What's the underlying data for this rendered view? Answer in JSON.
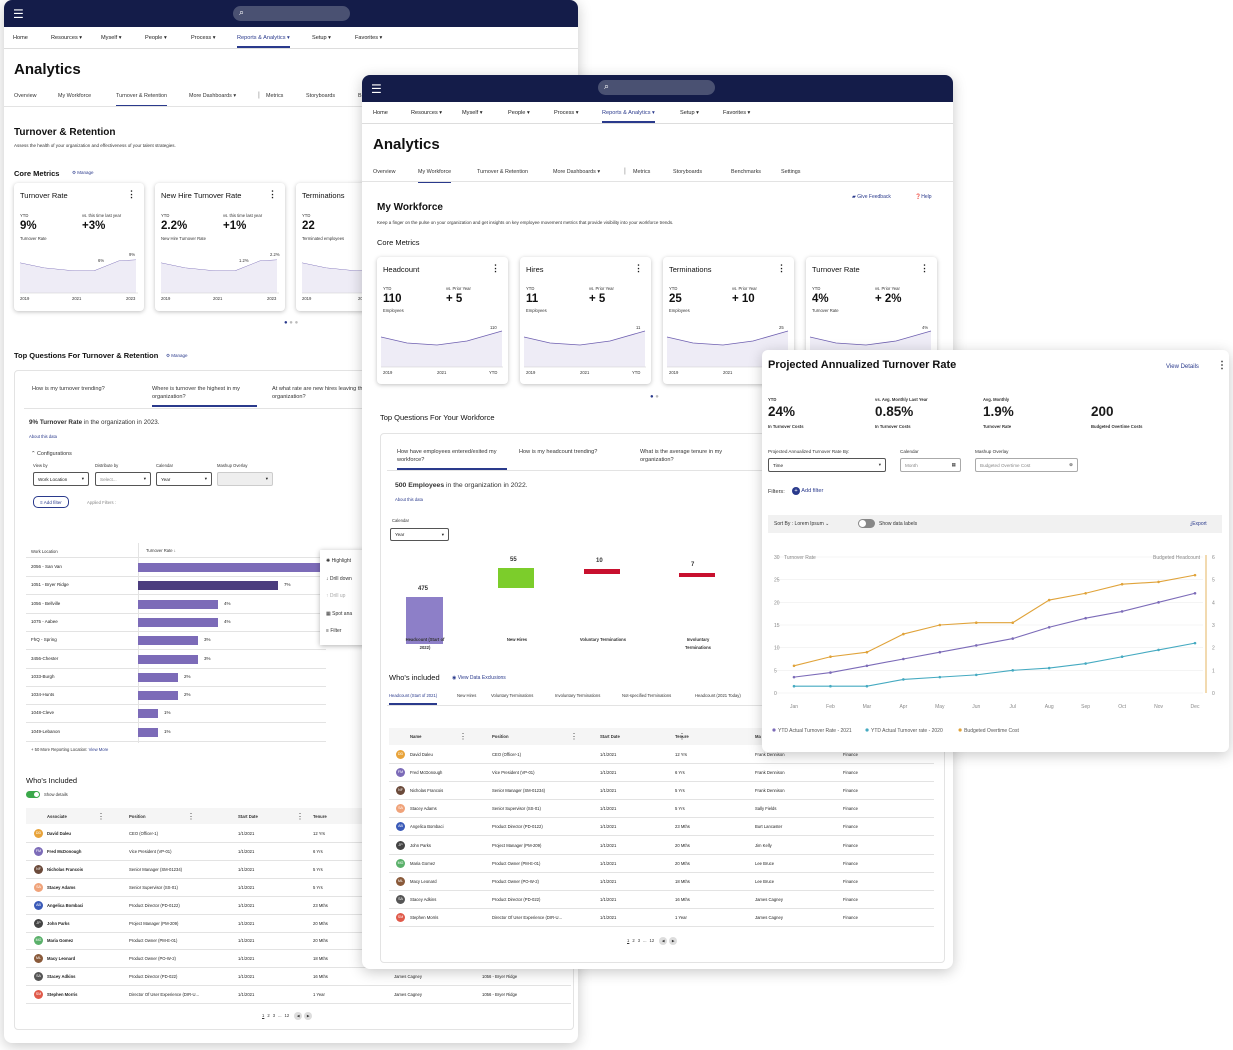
{
  "colors": {
    "navy": "#141c49",
    "accent": "#2a3a8c",
    "purple": "#7c6bb8",
    "dark_purple": "#4b3d7e",
    "green": "#7ccd2b",
    "red": "#c8102e",
    "orange": "#e0a33a",
    "teal": "#45aac1"
  },
  "nav": {
    "menu_icon": "menu-icon",
    "search_icon": "search-icon",
    "items": [
      "Home",
      "Resources",
      "Myself",
      "People",
      "Process",
      "Reports & Analytics",
      "Setup",
      "Favorites"
    ],
    "active": "Reports & Analytics"
  },
  "back": {
    "title": "Analytics",
    "tabs": [
      "Overview",
      "My Workforce",
      "Turnover & Retention",
      "More Dashboards",
      "Metrics",
      "Storyboards",
      "B"
    ],
    "section_title": "Turnover & Retention",
    "section_desc": "Assess the health of your organization and effectiveness of your talent strategies.",
    "core_metrics": "Core Metrics",
    "manage": "Manage",
    "cards": [
      {
        "title": "Turnover Rate",
        "ytd_label": "YTD",
        "ytd": "9%",
        "sub": "Turnover Rate",
        "cmp_label": "vs. this time last year",
        "cmp": "+3%",
        "p1": "6%",
        "p2": "9%",
        "x": [
          "2019",
          "2021",
          "2023"
        ]
      },
      {
        "title": "New Hire Turnover Rate",
        "ytd_label": "YTD",
        "ytd": "2.2%",
        "sub": "New Hire Turnover Rate",
        "cmp_label": "vs. this time last year",
        "cmp": "+1%",
        "p1": "1.2%",
        "p2": "2.2%",
        "x": [
          "2019",
          "2021",
          "2023"
        ]
      },
      {
        "title": "Terminations",
        "ytd_label": "YTD",
        "ytd": "22",
        "sub": "Terminated employees",
        "x": [
          "2019",
          "20"
        ]
      }
    ],
    "top_q_title": "Top Questions For Turnover & Retention",
    "questions": [
      "How is my turnover trending?",
      "Where is turnover the highest in my organization?",
      "At what rate are new hires leaving the organization?"
    ],
    "answer_bold": "9% Turnover Rate",
    "answer_rest": " in the organization in 2023.",
    "about": "About this data",
    "configurations": "Configurations",
    "config_labels": [
      "View by",
      "Distribute by",
      "Calendar",
      "Mashup Overlay"
    ],
    "config_values": [
      "Work Location",
      "Select...",
      "Year",
      ""
    ],
    "add_filter": "Add filter",
    "applied_filters": "Applied Filters :",
    "table_headers": [
      "Work Location",
      "Turnover Rate"
    ],
    "locations": [
      {
        "name": "2056 - San Van",
        "value": null
      },
      {
        "name": "1051 - Bryer Ridge",
        "value": "7%"
      },
      {
        "name": "1056 - Bellville",
        "value": "4%"
      },
      {
        "name": "1075 - Aabee",
        "value": "4%"
      },
      {
        "name": "FhQ - Spring",
        "value": "3%"
      },
      {
        "name": "3456-Chester",
        "value": "3%"
      },
      {
        "name": "1033-Burgh",
        "value": "2%"
      },
      {
        "name": "1034-Hunts",
        "value": "2%"
      },
      {
        "name": "1048-Cleve",
        "value": "1%"
      },
      {
        "name": "1049-Lebanon",
        "value": "1%"
      }
    ],
    "bar_values": [
      9.5,
      7,
      4,
      4,
      3,
      3,
      2,
      2,
      1,
      1
    ],
    "more_locations": "+ 50 More Reporting Location:",
    "view_more": "View More",
    "context_menu": [
      "Highlight",
      "Drill down",
      "Drill up",
      "Spot ana",
      "Filter"
    ],
    "whos_included": "Who's Included",
    "show_details": "Show details",
    "people_headers": [
      "Associate",
      "Position",
      "Start Date",
      "Tenure"
    ],
    "people": [
      {
        "ini": "DD",
        "name": "David Daleu",
        "pos": "CEO (Officer-1)",
        "start": "1/1/2021",
        "tenure": "12 Yrs",
        "color": "#e8a33a"
      },
      {
        "ini": "FM",
        "name": "Fred McDonough",
        "pos": "Vice President (VP-01)",
        "start": "1/1/2021",
        "tenure": "6 Yrs",
        "color": "#7c6bb8"
      },
      {
        "ini": "NF",
        "name": "Nicholas Francois",
        "pos": "Senior Manager (SM-01234)",
        "start": "1/1/2021",
        "tenure": "5 Yrs",
        "color": "#6b4a3a"
      },
      {
        "ini": "SA",
        "name": "Stacey Adams",
        "pos": "Senior Supervisor (SS-01)",
        "start": "1/1/2021",
        "tenure": "5 Yrs",
        "color": "#f0a37a"
      },
      {
        "ini": "AB",
        "name": "Angelica Bombaci",
        "pos": "Product Director (PD-0122)",
        "start": "1/1/2021",
        "tenure": "23 Mths",
        "color": "#3a5ab8"
      },
      {
        "ini": "JP",
        "name": "John Parks",
        "pos": "Project Manager (PM-209)",
        "start": "1/1/2021",
        "tenure": "20 Mths",
        "color": "#444"
      },
      {
        "ini": "MG",
        "name": "Maria Gomez",
        "pos": "Product Owner (PM-E-01)",
        "start": "1/1/2021",
        "tenure": "20 Mths",
        "color": "#5ab06a"
      },
      {
        "ini": "ML",
        "name": "Macy Leonard",
        "pos": "Product Owner (PO-W-2)",
        "start": "1/1/2021",
        "tenure": "18 Mths",
        "color": "#8a5a3a"
      },
      {
        "ini": "SA",
        "name": "Stacey Adkins",
        "pos": "Product Director (PD-022)",
        "start": "1/1/2021",
        "tenure": "16 Mths",
        "color": "#555"
      },
      {
        "ini": "SM",
        "name": "Stephen Morris",
        "pos": "Director Of User Experience (DIR-U...",
        "start": "1/1/2021",
        "tenure": "1 Year",
        "color": "#e05a4a"
      }
    ],
    "extra_cols": [
      {
        "mgr": "James Cagney",
        "loc": "1056 - Bryer Ridge"
      },
      {
        "mgr": "James Cagney",
        "loc": "1056 - Bryer Ridge"
      }
    ],
    "pager": [
      "1",
      "2",
      "3",
      "...",
      "12"
    ]
  },
  "mid": {
    "title": "Analytics",
    "tabs": [
      "Overview",
      "My Workforce",
      "Turnover & Retention",
      "More Dashboards",
      "Metrics",
      "Storyboards",
      "Benchmarks",
      "Settings"
    ],
    "feedback": "Give Feedback",
    "help": "Help",
    "section_title": "My Workforce",
    "section_desc": "Keep a finger on the pulse on your organization and get insights on key employee movement metrics that provide visibility into your workforce trends.",
    "core_metrics": "Core Metrics",
    "cards": [
      {
        "title": "Headcount",
        "ytd_label": "YTD",
        "ytd": "110",
        "sub": "Employees",
        "cmp_label": "vs. Prior Year",
        "cmp": "+ 5",
        "end": "110",
        "x": [
          "2019",
          "2021",
          "YTD"
        ]
      },
      {
        "title": "Hires",
        "ytd_label": "YTD",
        "ytd": "11",
        "sub": "Employees",
        "cmp_label": "vs. Prior Year",
        "cmp": "+ 5",
        "end": "11",
        "x": [
          "2019",
          "2021",
          "YTD"
        ]
      },
      {
        "title": "Terminations",
        "ytd_label": "YTD",
        "ytd": "25",
        "sub": "Employees",
        "cmp_label": "vs. Prior Year",
        "cmp": "+ 10",
        "end": "25",
        "x": [
          "2019",
          "2021",
          "YTD"
        ]
      },
      {
        "title": "Turnover Rate",
        "ytd_label": "YTD",
        "ytd": "4%",
        "sub": "Turnover Rate",
        "cmp_label": "vs. Prior Year",
        "cmp": "+ 2%",
        "end": "4%",
        "x": [
          "2019"
        ]
      }
    ],
    "top_q_title": "Top Questions For Your Workforce",
    "questions": [
      "How have employees entered/exited my workforce?",
      "How is my headcount trending?",
      "What is the average tenure in my organization?"
    ],
    "answer_bold": "500 Employees",
    "answer_rest": " in the organization in 2022.",
    "about": "About this data",
    "calendar_label": "Calendar",
    "calendar_value": "Year",
    "waterfall": [
      {
        "label": "Headcount (Start of 2022)",
        "value": 475
      },
      {
        "label": "New Hires",
        "value": 55
      },
      {
        "label": "Voluntary Terminations",
        "value": 10
      },
      {
        "label": "Involuntary Terminations",
        "value": 7
      }
    ],
    "whos_included": "Who's included",
    "view_exclusions": "View Data Exclusions",
    "sub_tabs": [
      "Headcount (Start of 2021)",
      "New Hires",
      "Voluntary Terminations",
      "Involuntary Terminations",
      "Not-specified Terminations",
      "Headcount (2021 Today)"
    ],
    "people_headers": [
      "Name",
      "Position",
      "Start Date",
      "Tenure",
      "Ma"
    ],
    "people": [
      {
        "ini": "DD",
        "name": "David Daleu",
        "pos": "CEO (Officer-1)",
        "start": "1/1/2021",
        "tenure": "12 Yrs",
        "mgr": "Frank Dennison",
        "dept": "Finance",
        "color": "#e8a33a"
      },
      {
        "ini": "FM",
        "name": "Fred McDonough",
        "pos": "Vice President (VP-01)",
        "start": "1/1/2021",
        "tenure": "6 Yrs",
        "mgr": "Frank Dennison",
        "dept": "Finance",
        "color": "#7c6bb8"
      },
      {
        "ini": "NF",
        "name": "Nicholas Francois",
        "pos": "Senior Manager (SM-01234)",
        "start": "1/1/2021",
        "tenure": "5 Yrs",
        "mgr": "Frank Dennison",
        "dept": "Finance",
        "color": "#6b4a3a"
      },
      {
        "ini": "SA",
        "name": "Stacey Adams",
        "pos": "Senior Supervisor (SS-01)",
        "start": "1/1/2021",
        "tenure": "5 Yrs",
        "mgr": "Sally Fields",
        "dept": "Finance",
        "color": "#f0a37a"
      },
      {
        "ini": "AB",
        "name": "Angelica Bombaci",
        "pos": "Product Director (PD-0122)",
        "start": "1/1/2021",
        "tenure": "23 Mths",
        "mgr": "Burt Lancaster",
        "dept": "Finance",
        "color": "#3a5ab8"
      },
      {
        "ini": "JP",
        "name": "John Parks",
        "pos": "Project Manager (PM-209)",
        "start": "1/1/2021",
        "tenure": "20 Mths",
        "mgr": "Jim Kelly",
        "dept": "Finance",
        "color": "#444"
      },
      {
        "ini": "MG",
        "name": "Maria Gomez",
        "pos": "Product Owner (PM-E-01)",
        "start": "1/1/2021",
        "tenure": "20 Mths",
        "mgr": "Lee Bruce",
        "dept": "Finance",
        "color": "#5ab06a"
      },
      {
        "ini": "ML",
        "name": "Macy Leonard",
        "pos": "Product Owner (PO-W-2)",
        "start": "1/1/2021",
        "tenure": "18 Mths",
        "mgr": "Lee Bruce",
        "dept": "Finance",
        "color": "#8a5a3a"
      },
      {
        "ini": "SA",
        "name": "Stacey Adkins",
        "pos": "Product Director (PD-022)",
        "start": "1/1/2021",
        "tenure": "16 Mths",
        "mgr": "James Cagney",
        "dept": "Finance",
        "color": "#555"
      },
      {
        "ini": "SM",
        "name": "Stephen Morris",
        "pos": "Director Of User Experience (DIR-U...",
        "start": "1/1/2021",
        "tenure": "1 Year",
        "mgr": "James Cagney",
        "dept": "Finance",
        "color": "#e05a4a"
      }
    ],
    "pager": [
      "1",
      "2",
      "3",
      "...",
      "12"
    ]
  },
  "popup": {
    "title": "Projected Annualized Turnover Rate",
    "view_details": "View Details",
    "kpis": [
      {
        "label": "YTD",
        "value": "24%",
        "sub": "In Turnover Costs"
      },
      {
        "label": "vs. Avg. Monthly Last Year",
        "value": "0.85%",
        "sub": "In Turnover Costs"
      },
      {
        "label": "Avg. Monthly",
        "value": "1.9%",
        "sub": "Turnover Rate"
      },
      {
        "label": "",
        "value": "200",
        "sub": "Budgeted Overtime Costs"
      }
    ],
    "filter_labels": [
      "Projected Annualized Turnover Rate By:",
      "Calendar",
      "Mashup Overlay"
    ],
    "filter_values": [
      "Time",
      "Month",
      "Budgeted Overtime Cost"
    ],
    "filters_label": "Filters:",
    "add_filter": "Add filter",
    "sort_by": "Sort By : Lorem Ipsum",
    "show_labels": "Show data labels",
    "export": "Export"
  },
  "chart_data": {
    "type": "line",
    "categories": [
      "Jan",
      "Feb",
      "Mar",
      "Apr",
      "May",
      "Jun",
      "Jul",
      "Aug",
      "Sep",
      "Oct",
      "Nov",
      "Dec"
    ],
    "ylabel": "Turnover Rate",
    "y2label": "Budgeted Headcount",
    "ylim": [
      0,
      30
    ],
    "y2lim": [
      0,
      6
    ],
    "yticks": [
      "0",
      "5",
      "10",
      "15",
      "20",
      "25",
      "30"
    ],
    "y2ticks": [
      "0",
      "1",
      "2",
      "3",
      "4",
      "5",
      "6"
    ],
    "series": [
      {
        "name": "YTD Actual Turnover Rate - 2021",
        "color": "#7c6bb8",
        "axis": "y",
        "values": [
          3.5,
          4.5,
          6,
          7.5,
          9,
          10.5,
          12,
          14.5,
          16.5,
          18,
          20,
          22
        ]
      },
      {
        "name": "YTD Actual Turnover rate - 2020",
        "color": "#45aac1",
        "axis": "y",
        "values": [
          1.5,
          1.5,
          1.5,
          3,
          3.5,
          4,
          5,
          5.5,
          6.5,
          8,
          9.5,
          11
        ]
      },
      {
        "name": "Budgeted Overtime Cost",
        "color": "#e0a33a",
        "axis": "y2",
        "values": [
          1.2,
          1.6,
          1.8,
          2.6,
          3,
          3.1,
          3.1,
          4.1,
          4.4,
          4.8,
          4.9,
          5.2
        ]
      }
    ]
  }
}
